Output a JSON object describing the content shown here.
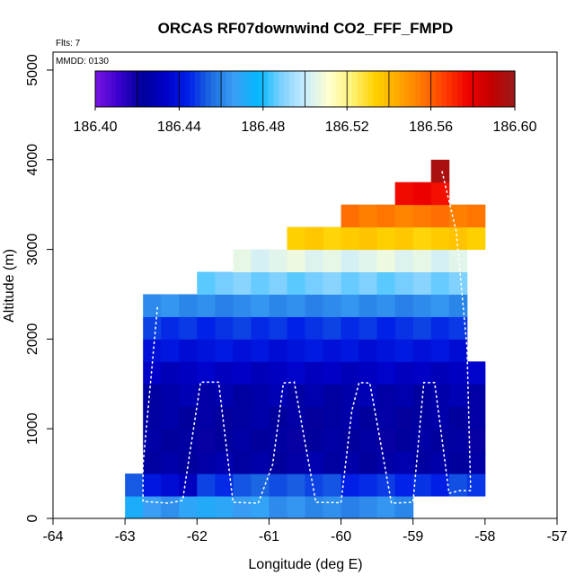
{
  "chart_data": {
    "type": "heatmap",
    "title": "ORCAS RF07downwind CO2_FFF_FMPD",
    "flights_note": "Flts: 7",
    "date_note": "MMDD: 0130",
    "xlabel": "Longitude (deg E)",
    "ylabel": "Altitude (m)",
    "xlim": [
      -64,
      -57
    ],
    "ylim": [
      0,
      5200
    ],
    "x_ticks": [
      -64,
      -63,
      -62,
      -61,
      -60,
      -59,
      -58,
      -57
    ],
    "y_ticks": [
      0,
      1000,
      2000,
      3000,
      4000,
      5000
    ],
    "colorbar": {
      "min": 186.4,
      "max": 186.6,
      "tick_values": [
        186.4,
        186.44,
        186.48,
        186.52,
        186.56,
        186.6
      ],
      "tick_labels": [
        "186.40",
        "186.44",
        "186.48",
        "186.52",
        "186.56",
        "186.60"
      ],
      "colors": [
        "#7a14e0",
        "#3a00d0",
        "#00009a",
        "#0000c8",
        "#0020e8",
        "#1e6ee0",
        "#3aa0f5",
        "#00b8ff",
        "#7fd0ff",
        "#c8ecff",
        "#ffffd0",
        "#fff27a",
        "#ffd200",
        "#ffa800",
        "#ff7800",
        "#ff3c00",
        "#ee0000",
        "#c40000",
        "#9a1a1a"
      ]
    },
    "cell_width_deg": 0.25,
    "cell_height_m": 250,
    "rows": [
      {
        "z0": 0,
        "x0": -63.0,
        "x1": -62.75,
        "v": 186.475
      },
      {
        "z0": 0,
        "x0": -62.75,
        "x1": -62.25,
        "v": 186.465
      },
      {
        "z0": 0,
        "x0": -62.25,
        "x1": -61.75,
        "v": 186.47
      },
      {
        "z0": 0,
        "x0": -61.75,
        "x1": -61.0,
        "v": 186.467
      },
      {
        "z0": 0,
        "x0": -61.0,
        "x1": -59.0,
        "v": 186.462
      },
      {
        "z0": 250,
        "x0": -63.0,
        "x1": -62.75,
        "v": 186.455
      },
      {
        "z0": 250,
        "x0": -62.75,
        "x1": -62.25,
        "v": 186.44
      },
      {
        "z0": 250,
        "x0": -62.25,
        "x1": -62.0,
        "v": 186.432
      },
      {
        "z0": 250,
        "x0": -62.0,
        "x1": -61.5,
        "v": 186.447
      },
      {
        "z0": 250,
        "x0": -61.5,
        "x1": -60.0,
        "v": 186.452
      },
      {
        "z0": 250,
        "x0": -60.0,
        "x1": -58.5,
        "v": 186.446
      },
      {
        "z0": 250,
        "x0": -58.5,
        "x1": -58.0,
        "v": 186.45
      },
      {
        "z0": 500,
        "x0": -62.75,
        "x1": -58.0,
        "v": 186.425
      },
      {
        "z0": 750,
        "x0": -62.75,
        "x1": -58.0,
        "v": 186.423
      },
      {
        "z0": 1000,
        "x0": -62.75,
        "x1": -58.0,
        "v": 186.424
      },
      {
        "z0": 1250,
        "x0": -62.75,
        "x1": -58.0,
        "v": 186.426
      },
      {
        "z0": 1500,
        "x0": -62.75,
        "x1": -58.0,
        "v": 186.432
      },
      {
        "z0": 1750,
        "x0": -62.75,
        "x1": -58.25,
        "v": 186.44
      },
      {
        "z0": 2000,
        "x0": -62.75,
        "x1": -58.25,
        "v": 186.447
      },
      {
        "z0": 2250,
        "x0": -62.75,
        "x1": -58.25,
        "v": 186.462
      },
      {
        "z0": 2500,
        "x0": -62.0,
        "x1": -58.25,
        "v": 186.488
      },
      {
        "z0": 2750,
        "x0": -61.5,
        "x1": -58.25,
        "v": 186.505
      },
      {
        "z0": 3000,
        "x0": -60.75,
        "x1": -58.0,
        "v": 186.535
      },
      {
        "z0": 3250,
        "x0": -60.0,
        "x1": -58.0,
        "v": 186.555
      },
      {
        "z0": 3500,
        "x0": -59.25,
        "x1": -58.5,
        "v": 186.576
      },
      {
        "z0": 3750,
        "x0": -58.75,
        "x1": -58.5,
        "v": 186.598
      }
    ],
    "flight_track": [
      [
        -62.55,
        2350
      ],
      [
        -62.75,
        600
      ],
      [
        -62.75,
        190
      ],
      [
        -62.4,
        170
      ],
      [
        -62.2,
        200
      ],
      [
        -61.95,
        1520
      ],
      [
        -61.7,
        1520
      ],
      [
        -61.5,
        180
      ],
      [
        -61.15,
        170
      ],
      [
        -60.95,
        600
      ],
      [
        -60.8,
        1510
      ],
      [
        -60.65,
        1520
      ],
      [
        -60.35,
        180
      ],
      [
        -60.0,
        175
      ],
      [
        -59.85,
        1200
      ],
      [
        -59.75,
        1515
      ],
      [
        -59.6,
        1510
      ],
      [
        -59.3,
        170
      ],
      [
        -59.0,
        180
      ],
      [
        -58.85,
        1515
      ],
      [
        -58.7,
        1515
      ],
      [
        -58.5,
        280
      ],
      [
        -58.35,
        310
      ],
      [
        -58.2,
        310
      ],
      [
        -58.25,
        1900
      ],
      [
        -58.4,
        3200
      ],
      [
        -58.6,
        3880
      ]
    ]
  }
}
